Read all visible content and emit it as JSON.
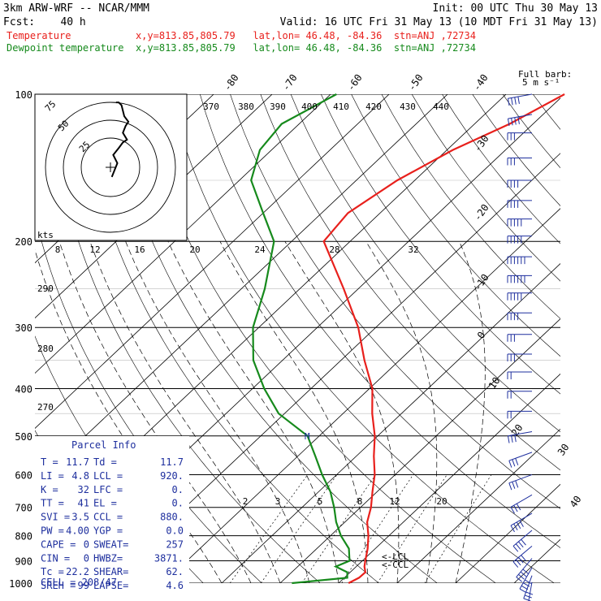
{
  "header": {
    "model": "3km ARW-WRF -- NCAR/MMM",
    "init": "Init: 00 UTC Thu 30 May 13",
    "fcst": "Fcst:    40 h",
    "valid": "Valid: 16 UTC Fri 31 May 13 (10 MDT Fri 31 May 13)",
    "temperature_line": "Temperature           x,y=813.85,805.79   lat,lon= 46.48, -84.36  stn=ANJ ,72734",
    "dewpoint_line": "Dewpoint temperature  x,y=813.85,805.79   lat,lon= 46.48, -84.36  stn=ANJ ,72734"
  },
  "colors": {
    "temperature": "#e8201c",
    "dewpoint": "#168a1c",
    "parcel": "#1e2f9e",
    "grid": "#000000"
  },
  "barb_legend": {
    "line1": "Full barb:",
    "line2": "5 m s⁻¹"
  },
  "hodograph": {
    "rings": [
      "75",
      "50",
      "25"
    ],
    "units": "kts"
  },
  "motion_marker": "M",
  "parcel_info": {
    "title": "Parcel Info",
    "rows": [
      [
        "T  =",
        "11.7",
        "Td =",
        "11.7"
      ],
      [
        "LI =",
        "4.8",
        "LCL =",
        "920."
      ],
      [
        "K  =",
        "32",
        "LFC =",
        "0."
      ],
      [
        "TT =",
        "41",
        "EL  =",
        "0."
      ],
      [
        "SVI =",
        "3.5",
        "CCL =",
        "880."
      ],
      [
        "PW =",
        "4.00",
        "YGP =",
        "0.0"
      ],
      [
        "CAPE =",
        "0",
        "SWEAT=",
        "257"
      ],
      [
        "CIN =",
        "0",
        "HWBZ=",
        "3871."
      ],
      [
        "Tc =",
        "22.2",
        "SHEAR=",
        "62."
      ],
      [
        "SREH =",
        "99",
        "LAPSE=",
        "4.6"
      ]
    ],
    "cell": "CELL = 208/47"
  },
  "chart_data": {
    "type": "line",
    "title": "",
    "xlabel": "",
    "ylabel": "",
    "y_scale": "log-pressure",
    "pressure_labels": [
      "100",
      "200",
      "300",
      "400",
      "500",
      "600",
      "700",
      "800",
      "900",
      "1000"
    ],
    "isotherm_labels": [
      "-80",
      "-70",
      "-60",
      "-50",
      "-40",
      "-30",
      "-20",
      "-10",
      "0",
      "10",
      "20",
      "30",
      "40"
    ],
    "mixing_ratio_labels": [
      "2",
      "3",
      "5",
      "8",
      "12",
      "20"
    ],
    "theta_e_labels": [
      "370",
      "380",
      "390",
      "400",
      "410",
      "420",
      "430",
      "440"
    ],
    "theta_labels": [
      "290",
      "280",
      "270"
    ],
    "inset_axis_labels": [
      "8",
      "12",
      "16",
      "20",
      "24",
      "28",
      "32"
    ],
    "level_labels": [
      "LCL",
      "CCL"
    ],
    "series": [
      {
        "name": "Temperature",
        "points": [
          [
            1000,
            11.7
          ],
          [
            975,
            12.5
          ],
          [
            950,
            12.6
          ],
          [
            925,
            11.4
          ],
          [
            900,
            10.5
          ],
          [
            850,
            8.7
          ],
          [
            800,
            6.5
          ],
          [
            750,
            3.8
          ],
          [
            700,
            1.8
          ],
          [
            650,
            -0.8
          ],
          [
            600,
            -3.5
          ],
          [
            550,
            -7.0
          ],
          [
            500,
            -10.5
          ],
          [
            450,
            -15.0
          ],
          [
            400,
            -19.5
          ],
          [
            350,
            -26.0
          ],
          [
            300,
            -33.0
          ],
          [
            250,
            -42.5
          ],
          [
            200,
            -54.5
          ],
          [
            175,
            -55.5
          ],
          [
            150,
            -53.0
          ],
          [
            130,
            -49.0
          ],
          [
            115,
            -44.0
          ],
          [
            100,
            -40.0
          ]
        ]
      },
      {
        "name": "Dewpoint temperature",
        "points": [
          [
            1000,
            2.0
          ],
          [
            975,
            10.5
          ],
          [
            950,
            9.5
          ],
          [
            925,
            6.5
          ],
          [
            900,
            7.8
          ],
          [
            850,
            5.5
          ],
          [
            800,
            1.8
          ],
          [
            750,
            -1.5
          ],
          [
            700,
            -4.5
          ],
          [
            650,
            -8.0
          ],
          [
            600,
            -12.5
          ],
          [
            550,
            -17.0
          ],
          [
            500,
            -22.0
          ],
          [
            450,
            -31.0
          ],
          [
            400,
            -38.0
          ],
          [
            350,
            -45.0
          ],
          [
            300,
            -51.0
          ],
          [
            250,
            -56.0
          ],
          [
            200,
            -63.0
          ],
          [
            175,
            -70.0
          ],
          [
            150,
            -78.0
          ],
          [
            130,
            -82.0
          ],
          [
            115,
            -83.0
          ],
          [
            100,
            -79.0
          ]
        ]
      }
    ],
    "wind_barbs_m_s": [
      {
        "p": 100,
        "speed": 20,
        "dir": 260
      },
      {
        "p": 110,
        "speed": 20,
        "dir": 260
      },
      {
        "p": 120,
        "speed": 15,
        "dir": 270
      },
      {
        "p": 135,
        "speed": 15,
        "dir": 270
      },
      {
        "p": 150,
        "speed": 20,
        "dir": 270
      },
      {
        "p": 165,
        "speed": 20,
        "dir": 270
      },
      {
        "p": 180,
        "speed": 25,
        "dir": 270
      },
      {
        "p": 195,
        "speed": 25,
        "dir": 270
      },
      {
        "p": 215,
        "speed": 30,
        "dir": 270
      },
      {
        "p": 235,
        "speed": 30,
        "dir": 270
      },
      {
        "p": 255,
        "speed": 25,
        "dir": 270
      },
      {
        "p": 280,
        "speed": 20,
        "dir": 270
      },
      {
        "p": 310,
        "speed": 15,
        "dir": 270
      },
      {
        "p": 340,
        "speed": 15,
        "dir": 270
      },
      {
        "p": 370,
        "speed": 10,
        "dir": 270
      },
      {
        "p": 405,
        "speed": 10,
        "dir": 270
      },
      {
        "p": 445,
        "speed": 10,
        "dir": 270
      },
      {
        "p": 490,
        "speed": 15,
        "dir": 260
      },
      {
        "p": 540,
        "speed": 15,
        "dir": 250
      },
      {
        "p": 600,
        "speed": 15,
        "dir": 250
      },
      {
        "p": 660,
        "speed": 15,
        "dir": 240
      },
      {
        "p": 720,
        "speed": 20,
        "dir": 240
      },
      {
        "p": 780,
        "speed": 20,
        "dir": 230
      },
      {
        "p": 840,
        "speed": 20,
        "dir": 230
      },
      {
        "p": 890,
        "speed": 20,
        "dir": 220
      },
      {
        "p": 930,
        "speed": 20,
        "dir": 210
      },
      {
        "p": 965,
        "speed": 15,
        "dir": 200
      },
      {
        "p": 995,
        "speed": 10,
        "dir": 190
      }
    ],
    "hodograph_trace_m_s": [
      [
        1,
        -7
      ],
      [
        3,
        -2
      ],
      [
        5,
        3
      ],
      [
        2,
        9
      ],
      [
        6,
        14
      ],
      [
        9,
        18
      ],
      [
        12,
        20
      ],
      [
        9,
        25
      ],
      [
        11,
        30
      ],
      [
        13,
        33
      ],
      [
        10,
        37
      ],
      [
        9,
        41
      ],
      [
        8,
        45
      ],
      [
        6,
        47
      ],
      [
        4,
        47
      ]
    ]
  }
}
